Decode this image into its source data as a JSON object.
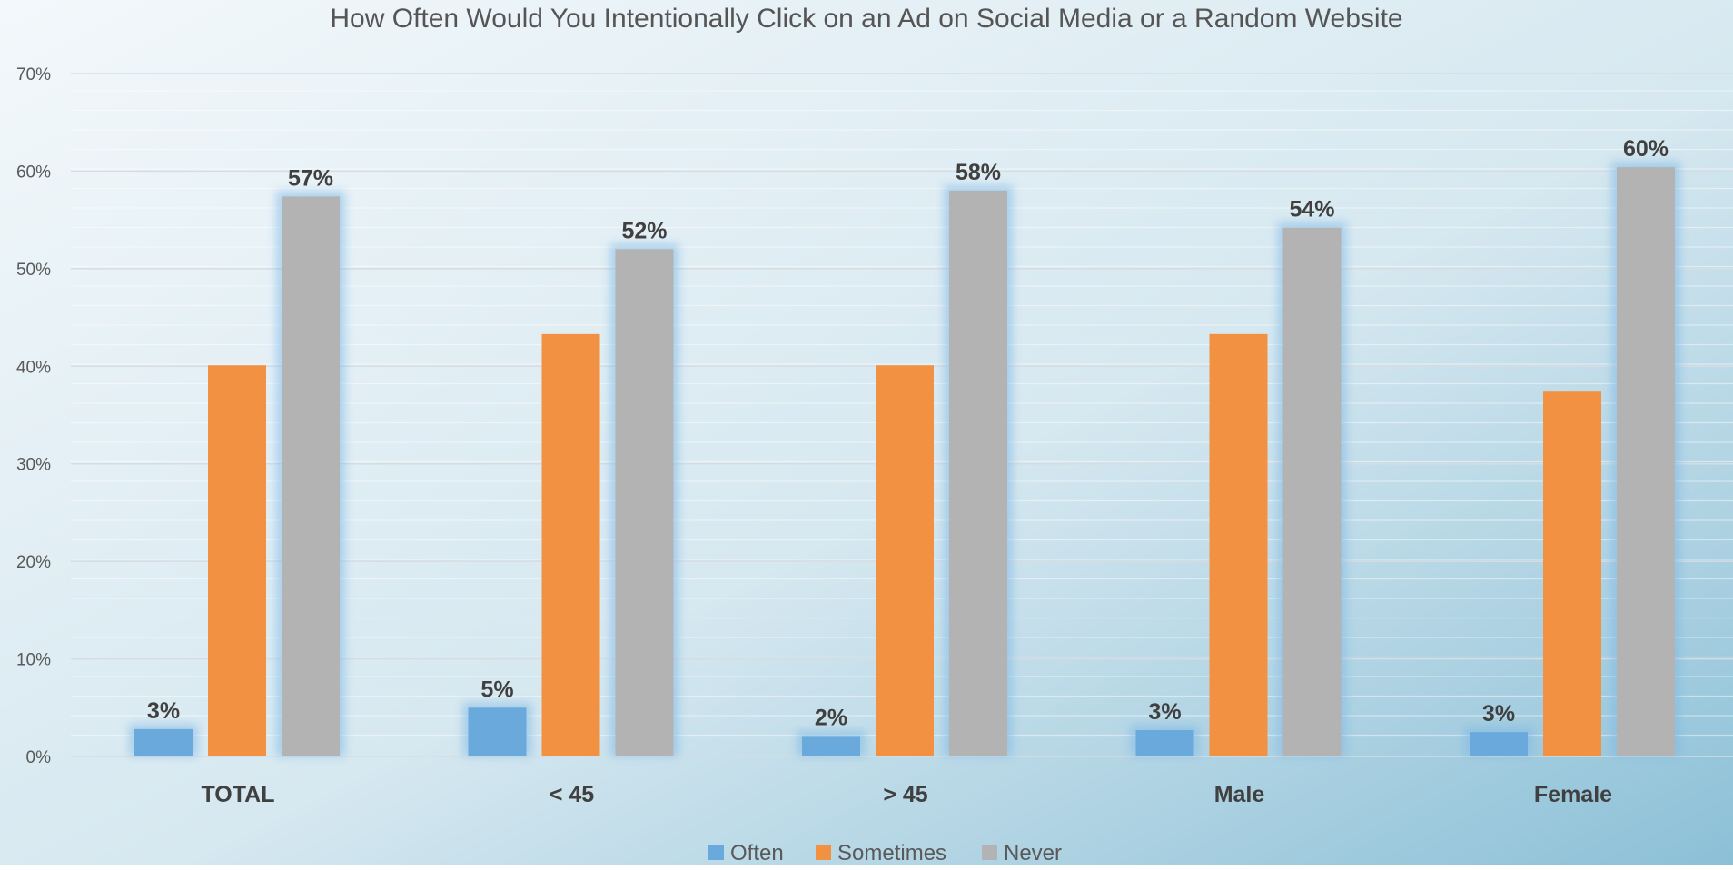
{
  "chart_data": {
    "type": "bar",
    "title": "How Often Would You Intentionally Click on an Ad on Social Media or a Random Website",
    "categories": [
      "TOTAL",
      "< 45",
      "> 45",
      "Male",
      "Female"
    ],
    "series": [
      {
        "name": "Often",
        "color": "#6aa9dc",
        "values": [
          2.8,
          5.0,
          2.1,
          2.7,
          2.5
        ],
        "data_labels": [
          "3%",
          "5%",
          "2%",
          "3%",
          "3%"
        ]
      },
      {
        "name": "Sometimes",
        "color": "#f29141",
        "values": [
          40.1,
          43.3,
          40.1,
          43.3,
          37.4
        ],
        "data_labels": [
          "",
          "",
          "",
          "",
          ""
        ]
      },
      {
        "name": "Never",
        "color": "#b3b3b3",
        "values": [
          57.4,
          52.0,
          58.0,
          54.2,
          60.4
        ],
        "data_labels": [
          "57%",
          "52%",
          "58%",
          "54%",
          "60%"
        ]
      }
    ],
    "ylim": [
      0,
      70
    ],
    "yticks": [
      0,
      10,
      20,
      30,
      40,
      50,
      60,
      70
    ],
    "ytick_labels": [
      "0%",
      "10%",
      "20%",
      "30%",
      "40%",
      "50%",
      "60%",
      "70%"
    ],
    "grid": true,
    "legend": "bottom-center",
    "colors": {
      "bg_light": "#f1f6f9",
      "bg_dark": "#8fc0d6",
      "text": "#404040",
      "axis_text": "#595959"
    }
  }
}
